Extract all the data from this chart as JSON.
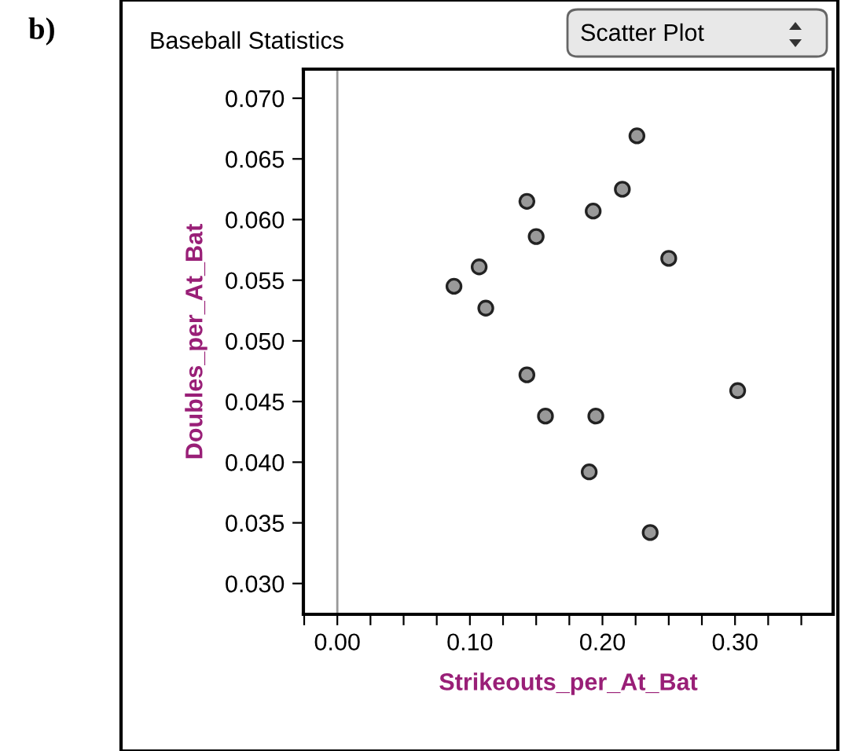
{
  "chart_data": {
    "type": "scatter",
    "title": "Baseball Statistics",
    "xlabel": "Strikeouts_per_At_Bat",
    "ylabel": "Doubles_per_At_Bat",
    "annotations": [
      "b)",
      "Scatter Plot"
    ],
    "x": [
      0.226,
      0.215,
      0.143,
      0.193,
      0.15,
      0.25,
      0.107,
      0.088,
      0.112,
      0.143,
      0.302,
      0.157,
      0.195,
      0.19,
      0.236
    ],
    "series": [
      {
        "color": "#999999",
        "values": [
          0.0669,
          0.0625,
          0.0615,
          0.0607,
          0.0586,
          0.0568,
          0.0561,
          0.0545,
          0.0527,
          0.0472,
          0.0459,
          0.0438,
          0.0438,
          0.0392,
          0.0342
        ]
      }
    ],
    "xlim": [
      -0.0256,
      0.374
    ],
    "ylim": [
      0.02746,
      0.0724
    ],
    "xticks": [
      {
        "value": -0.025,
        "label": null
      },
      {
        "value": 0.0,
        "label": "0.00"
      },
      {
        "value": 0.025,
        "label": null
      },
      {
        "value": 0.05,
        "label": null
      },
      {
        "value": 0.075,
        "label": null
      },
      {
        "value": 0.1,
        "label": "0.10"
      },
      {
        "value": 0.125,
        "label": null
      },
      {
        "value": 0.15,
        "label": null
      },
      {
        "value": 0.175,
        "label": null
      },
      {
        "value": 0.2,
        "label": "0.20"
      },
      {
        "value": 0.225,
        "label": null
      },
      {
        "value": 0.25,
        "label": null
      },
      {
        "value": 0.275,
        "label": null
      },
      {
        "value": 0.3,
        "label": "0.30"
      },
      {
        "value": 0.325,
        "label": null
      },
      {
        "value": 0.35,
        "label": null
      }
    ],
    "yticks": [
      {
        "value": 0.03,
        "label": "0.030"
      },
      {
        "value": 0.035,
        "label": "0.035"
      },
      {
        "value": 0.04,
        "label": "0.040"
      },
      {
        "value": 0.045,
        "label": "0.045"
      },
      {
        "value": 0.05,
        "label": "0.050"
      },
      {
        "value": 0.055,
        "label": "0.055"
      },
      {
        "value": 0.06,
        "label": "0.060"
      },
      {
        "value": 0.065,
        "label": "0.065"
      },
      {
        "value": 0.07,
        "label": "0.070"
      }
    ],
    "ref_lines": [
      {
        "axis": "x",
        "value": 0.0,
        "color": "#999999"
      }
    ],
    "marker": "circle",
    "grid": false,
    "legend": false
  }
}
